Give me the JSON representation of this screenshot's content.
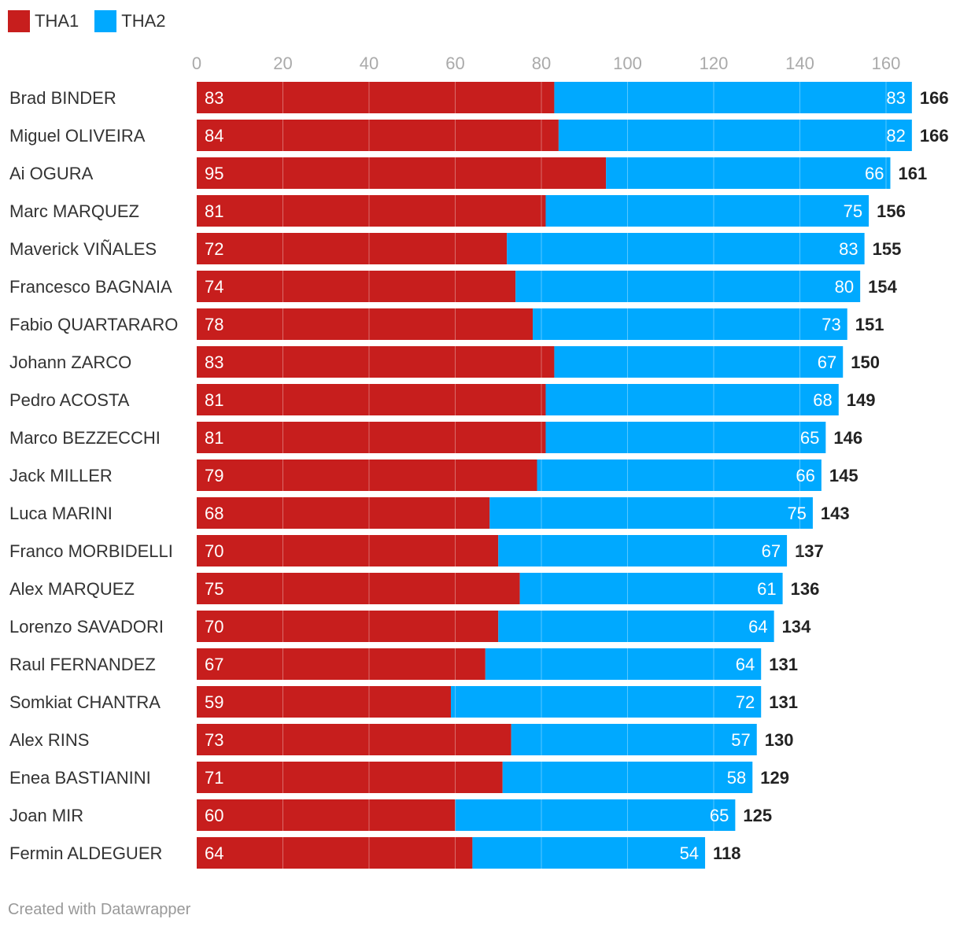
{
  "colors": {
    "THA1": "#c71e1d",
    "THA2": "#00a9ff",
    "grid": "#dddddd",
    "tick": "#aaaaaa",
    "text": "#333333",
    "total": "#222222"
  },
  "legend": [
    {
      "label": "THA1",
      "color_key": "THA1"
    },
    {
      "label": "THA2",
      "color_key": "THA2"
    }
  ],
  "footer": "Created with Datawrapper",
  "chart_data": {
    "type": "bar",
    "orientation": "horizontal",
    "stacked": true,
    "legend_position": "top-left",
    "grid": true,
    "xlim": [
      0,
      166
    ],
    "ticks": [
      0,
      20,
      40,
      60,
      80,
      100,
      120,
      140,
      160
    ],
    "categories": [
      "Brad BINDER",
      "Miguel OLIVEIRA",
      "Ai OGURA",
      "Marc MARQUEZ",
      "Maverick VIÑALES",
      "Francesco BAGNAIA",
      "Fabio QUARTARARO",
      "Johann ZARCO",
      "Pedro ACOSTA",
      "Marco BEZZECCHI",
      "Jack MILLER",
      "Luca MARINI",
      "Franco MORBIDELLI",
      "Alex MARQUEZ",
      "Lorenzo SAVADORI",
      "Raul FERNANDEZ",
      "Somkiat CHANTRA",
      "Alex RINS",
      "Enea BASTIANINI",
      "Joan MIR",
      "Fermin ALDEGUER"
    ],
    "series": [
      {
        "name": "THA1",
        "values": [
          83,
          84,
          95,
          81,
          72,
          74,
          78,
          83,
          81,
          81,
          79,
          68,
          70,
          75,
          70,
          67,
          59,
          73,
          71,
          60,
          64
        ]
      },
      {
        "name": "THA2",
        "values": [
          83,
          82,
          66,
          75,
          83,
          80,
          73,
          67,
          68,
          65,
          66,
          75,
          67,
          61,
          64,
          64,
          72,
          57,
          58,
          65,
          54
        ]
      }
    ],
    "totals": [
      166,
      166,
      161,
      156,
      155,
      154,
      151,
      150,
      149,
      146,
      145,
      143,
      137,
      136,
      134,
      131,
      131,
      130,
      129,
      125,
      118
    ]
  }
}
